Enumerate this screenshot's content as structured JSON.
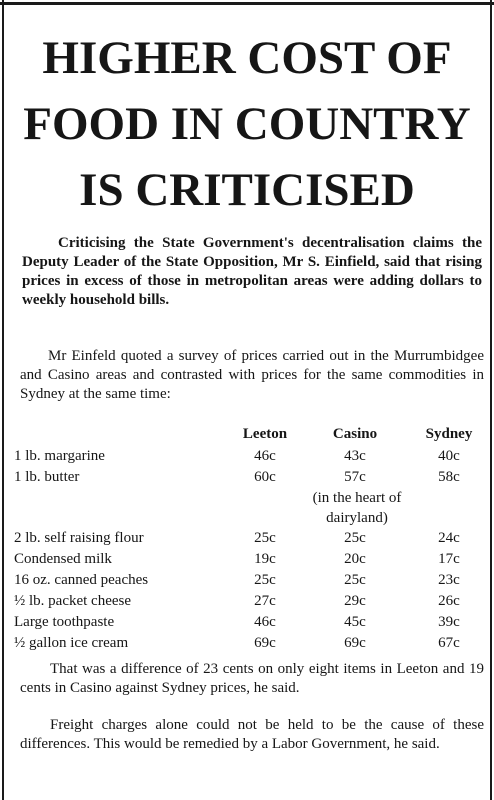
{
  "headline": {
    "line1": "HIGHER COST OF",
    "line2": "FOOD IN COUNTRY",
    "line3": "IS CRITICISED"
  },
  "lead": "Criticising the State Government's decentralisation claims the Deputy Leader of the State Opposition, Mr S. Einfield, said that rising prices in excess of those in metropolitan areas were adding dollars to weekly household bills.",
  "intro": "Mr Einfeld quoted a survey of prices carried out in the Murrumbidgee and Casino areas and contrasted with prices for the same commodities in Sydney at the same time:",
  "table": {
    "headers": [
      "Leeton",
      "Casino",
      "Sydney"
    ],
    "rows": [
      {
        "item": "1 lb. margarine",
        "leeton": "46c",
        "casino": "43c",
        "sydney": "40c"
      },
      {
        "item": "1 lb. butter",
        "leeton": "60c",
        "casino": "57c",
        "sydney": "58c"
      },
      {
        "item": "2 lb. self raising flour",
        "leeton": "25c",
        "casino": "25c",
        "sydney": "24c"
      },
      {
        "item": "Condensed milk",
        "leeton": "19c",
        "casino": "20c",
        "sydney": "17c"
      },
      {
        "item": "16 oz. canned peaches",
        "leeton": "25c",
        "casino": "25c",
        "sydney": "23c"
      },
      {
        "item": "½ lb. packet cheese",
        "leeton": "27c",
        "casino": "29c",
        "sydney": "26c"
      },
      {
        "item": "Large toothpaste",
        "leeton": "46c",
        "casino": "45c",
        "sydney": "39c"
      },
      {
        "item": "½ gallon ice cream",
        "leeton": "69c",
        "casino": "69c",
        "sydney": "67c"
      }
    ],
    "butter_note": "(in the heart of dairyland)"
  },
  "para3": "That was a difference of 23 cents on only eight items in Leeton and 19 cents in Casino against Sydney prices, he said.",
  "para4": "Freight charges alone could not be held to be the cause of these differences. This would be remedied by a Labor Government, he said."
}
